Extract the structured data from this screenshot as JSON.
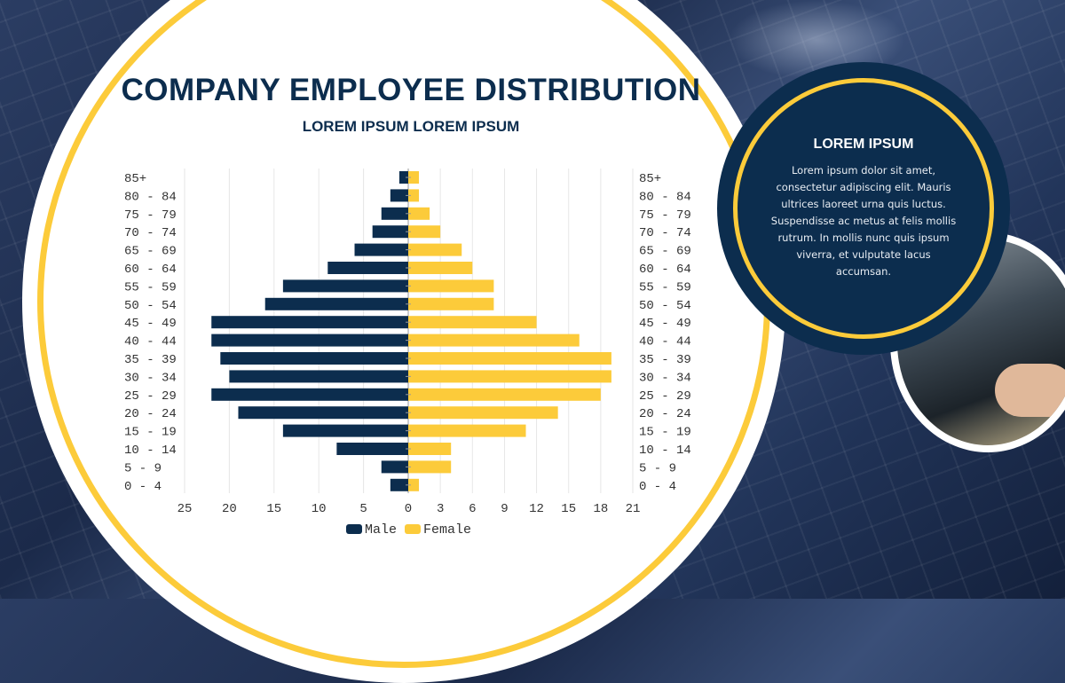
{
  "title": "COMPANY EMPLOYEE DISTRIBUTION",
  "subtitle": "LOREM IPSUM LOREM IPSUM",
  "card": {
    "title": "LOREM IPSUM",
    "body": "Lorem ipsum dolor sit amet, consectetur adipiscing elit. Mauris ultrices laoreet urna quis luctus. Suspendisse ac metus at felis mollis rutrum. In mollis nunc quis ipsum viverra, et vulputate lacus accumsan."
  },
  "colors": {
    "male": "#0c2d4e",
    "female": "#fccb3a"
  },
  "chart_data": {
    "type": "bar",
    "orientation": "horizontal population pyramid",
    "categories": [
      "85+",
      "80 - 84",
      "75 - 79",
      "70 - 74",
      "65 - 69",
      "60 - 64",
      "55 - 59",
      "50 - 54",
      "45 - 49",
      "40 - 44",
      "35 - 39",
      "30 - 34",
      "25 - 29",
      "20 - 24",
      "15 - 19",
      "10 - 14",
      "5 - 9",
      "0 - 4"
    ],
    "series": [
      {
        "name": "Male",
        "values": [
          1,
          2,
          3,
          4,
          6,
          9,
          14,
          16,
          22,
          22,
          21,
          20,
          22,
          19,
          14,
          8,
          3,
          2
        ]
      },
      {
        "name": "Female",
        "values": [
          1,
          1,
          2,
          3,
          5,
          6,
          8,
          8,
          12,
          16,
          19,
          19,
          18,
          14,
          11,
          4,
          4,
          1
        ]
      }
    ],
    "male_ticks": [
      "25",
      "20",
      "15",
      "10",
      "5",
      "0"
    ],
    "female_ticks": [
      "3",
      "6",
      "9",
      "12",
      "15",
      "18",
      "21"
    ],
    "male_xlim": [
      0,
      25
    ],
    "female_xlim": [
      0,
      21
    ],
    "legend": {
      "position": "bottom",
      "entries": [
        "Male",
        "Female"
      ]
    },
    "grid": true
  }
}
